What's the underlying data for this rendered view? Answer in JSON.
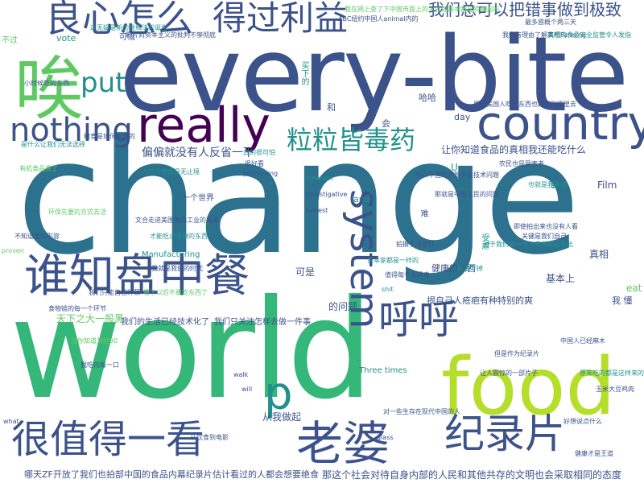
{
  "colors": {
    "background": "#ffffff",
    "dark_purple": "#440154",
    "indigo": "#3b528b",
    "teal": "#21918c",
    "teal_dark": "#2c728e",
    "green": "#5ec962",
    "sea_green": "#35b779",
    "yellow_green": "#b5de2b",
    "yellow": "#fde725"
  },
  "words": {
    "change": "change",
    "every_bite": "every-bite",
    "world": "world",
    "food": "food",
    "country": "country",
    "really": "really",
    "nothing": "nothing",
    "put": "put",
    "system": "system",
    "p": "p",
    "ai": "唉",
    "liangxin": "良心怎么",
    "deguoliyi": "得过利益",
    "cuoshi": "我们总可以把错事做到极致",
    "shuizhi": "谁知盘中餐",
    "lilidu": "粒粒皆毒药",
    "huhu": "呼呼",
    "laopo": "老婆",
    "henzhide": "很值得一看",
    "jilupian": "纪录片",
    "fandui": "偏偏就没有人反省一下",
    "rangni": "让你知道食品的真相我还能吃什么",
    "tianxia": "天下之大一般黑",
    "shidai": "那这个社会对待自身内部的人民和其他共存的文明也会采取相同的态度",
    "naitian": "哪天ZF开放了我们也拍部中国的食品内幕纪录片",
    "guji": "估计看过的人都会想要绝食",
    "wenti": "的问题",
    "jiben": "基本上",
    "zhenxiang": "真相",
    "keshi": "可是",
    "congwo": "从我做起",
    "hege": "哈哈",
    "he": "和",
    "land": "land",
    "day": "day",
    "vote": "vote",
    "film": "Film",
    "eat": "eat",
    "manufacturing": "Manufacturing",
    "three_times": "Three times",
    "buguo": "不过",
    "kexi": "可惜",
    "jiudao": "揭自己人疮疤有种特别的爽",
    "wo_dong": "我 懂",
    "women_shenghuo": "我们的生活已经技术化了",
    "women_guanzhu": "我们只关注怎样去做一件事",
    "shijie": "一个世界",
    "jiakang": "健康的东西",
    "maixia": "买下的",
    "hui": "会",
    "nan": "难",
    "shouqi": "受虐",
    "u": "U",
    "s": "s"
  },
  "small_words": [
    "这无疑是新的碰瓶法的诞生",
    "影片对资本主义的批判不够彻底",
    "我在网上查了下中国市面上的大豆油基本都是转基因的",
    "ABC纽约中国人animal内的",
    "最多感概个两三天",
    "我们有理由了解真相Farming",
    "美帝的食品安全监管令人发指",
    "原来美国人吃的东西也好不到哪里去",
    "所以中国的问题不是技术问题",
    "对于我们每一个人来说都是如此",
    "即使拍出来也没有人看",
    "关键是我们自己",
    "不知道怎么形容",
    "看了以后不敢吃东西了",
    "让人震惊的一部片子",
    "文合走进美国食品工业的黑幕",
    "环保先要的方式去活",
    "人的贪婪真是无止境",
    "食物链的每一个环节",
    "对一些生存在现代中国的人",
    "拍摄手法很好",
    "资本家都是一样的",
    "值得每个人思考",
    "那就是中国人民的问题",
    "才能吃点健康的东西",
    "我就是我们的时代",
    "一看遍吓掉",
    "但是作为纪录片",
    "中国人已经麻木",
    "我们只能自己种菜",
    "也就是我来说",
    "当你知道美国90",
    "我吃的每一口",
    "从饮食到电影",
    "小时候吃的东西",
    "是什么让我们无法选择",
    "有机食品贵了",
    "好想说点什么",
    "健康才是王道",
    "原来吃的都是这样来的",
    "玉米大豆鸡肉",
    "粮食是如何生产的",
    "农民也是受害者",
    "真的很可怕",
    "很好看",
    "processing",
    "different",
    "investigative",
    "honest",
    "shit",
    "glass",
    "walk",
    "will",
    "what",
    "proven"
  ]
}
